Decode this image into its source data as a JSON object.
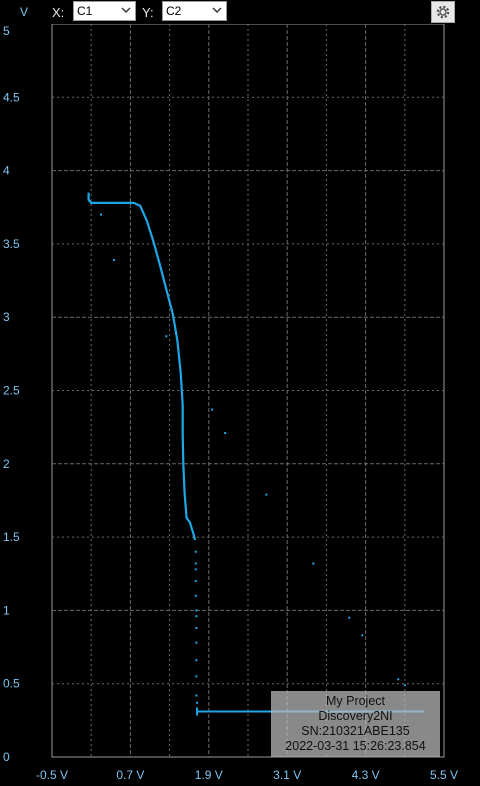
{
  "toolbar": {
    "y_unit": "V",
    "x_label": "X:",
    "x_value": "C1",
    "y_label": "Y:",
    "y_value": "C2"
  },
  "colors": {
    "trace": "#1ea7e6",
    "grid": "#6a6a6a",
    "axis_text": "#7fc4f0"
  },
  "chart_data": {
    "type": "scatter",
    "x_ticks": [
      "-0.5 V",
      "0.7 V",
      "1.9 V",
      "3.1 V",
      "4.3 V",
      "5.5 V"
    ],
    "y_ticks": [
      "0",
      "0.5",
      "1",
      "1.5",
      "2",
      "2.5",
      "3",
      "3.5",
      "4",
      "4.5",
      "5"
    ],
    "xlim": [
      -0.5,
      5.5
    ],
    "ylim": [
      0,
      5
    ],
    "grid": true,
    "series": [
      {
        "values_line": [
          [
            0.06,
            3.85
          ],
          [
            0.06,
            3.8
          ],
          [
            0.1,
            3.78
          ],
          [
            0.3,
            3.78
          ],
          [
            0.55,
            3.78
          ],
          [
            0.75,
            3.78
          ],
          [
            0.85,
            3.76
          ],
          [
            0.95,
            3.66
          ],
          [
            1.05,
            3.52
          ],
          [
            1.15,
            3.36
          ],
          [
            1.25,
            3.19
          ],
          [
            1.35,
            3.02
          ],
          [
            1.42,
            2.84
          ],
          [
            1.47,
            2.62
          ],
          [
            1.5,
            2.4
          ],
          [
            1.5,
            2.2
          ],
          [
            1.51,
            2.0
          ],
          [
            1.53,
            1.8
          ],
          [
            1.56,
            1.63
          ],
          [
            1.61,
            1.6
          ],
          [
            1.66,
            1.53
          ],
          [
            1.69,
            1.48
          ]
        ],
        "values_points": [
          [
            1.7,
            1.4
          ],
          [
            1.7,
            1.32
          ],
          [
            1.7,
            1.28
          ],
          [
            1.7,
            1.2
          ],
          [
            1.7,
            1.1
          ],
          [
            1.71,
            1.0
          ],
          [
            1.71,
            0.96
          ],
          [
            1.71,
            0.88
          ],
          [
            1.71,
            0.78
          ],
          [
            1.71,
            0.66
          ],
          [
            1.71,
            0.55
          ],
          [
            1.71,
            0.42
          ],
          [
            1.72,
            0.37
          ],
          [
            1.72,
            0.33
          ],
          [
            0.25,
            3.7
          ],
          [
            0.45,
            3.39
          ],
          [
            1.25,
            2.87
          ],
          [
            1.95,
            2.37
          ],
          [
            2.15,
            2.21
          ],
          [
            2.78,
            1.79
          ],
          [
            3.5,
            1.32
          ],
          [
            4.05,
            0.95
          ],
          [
            4.25,
            0.83
          ],
          [
            4.8,
            0.53
          ],
          [
            4.9,
            0.49
          ]
        ],
        "values_floor": [
          [
            1.72,
            0.31
          ],
          [
            5.2,
            0.31
          ]
        ]
      }
    ]
  },
  "info": {
    "line1": "My Project",
    "line2": "Discovery2NI",
    "line3": "SN:210321ABE135",
    "line4": "2022-03-31 15:26:23.854"
  }
}
